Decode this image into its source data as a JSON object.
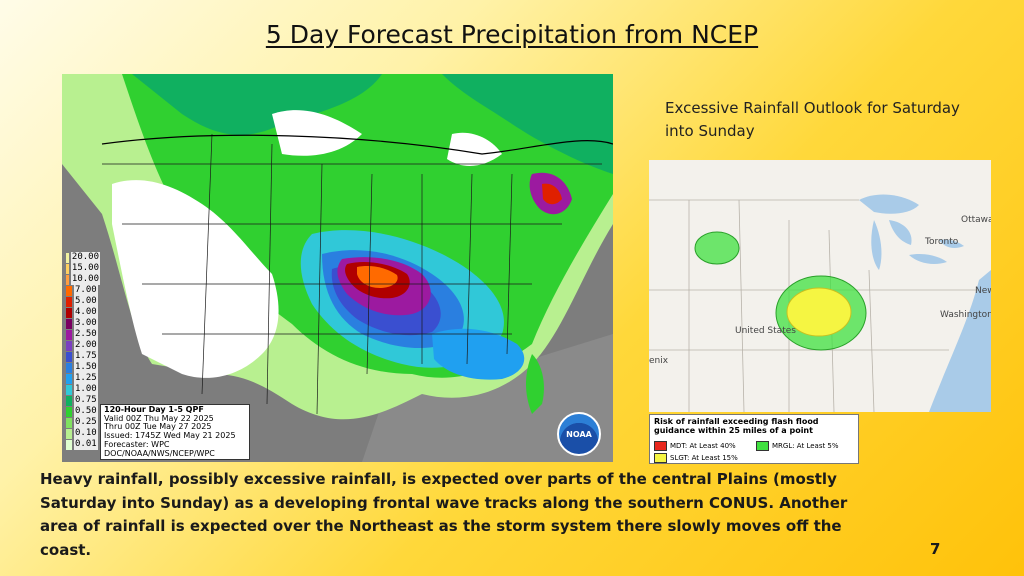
{
  "slide": {
    "title": "5 Day Forecast Precipitation from NCEP",
    "body": "Heavy rainfall, possibly excessive rainfall, is expected over parts of the central Plains (mostly Saturday into Sunday) as a developing frontal wave tracks along the southern CONUS.  Another area of rainfall is expected over the Northeast as the storm system there slowly moves off the coast.",
    "page_number": "7"
  },
  "qpf_map": {
    "legend": [
      {
        "label": "20.00",
        "color": "#f2f2a0"
      },
      {
        "label": "15.00",
        "color": "#ffd060"
      },
      {
        "label": "10.00",
        "color": "#ff9e40"
      },
      {
        "label": "7.00",
        "color": "#ff6a00"
      },
      {
        "label": "5.00",
        "color": "#e02000"
      },
      {
        "label": "4.00",
        "color": "#b00000"
      },
      {
        "label": "3.00",
        "color": "#7a0060"
      },
      {
        "label": "2.50",
        "color": "#9c1aa0"
      },
      {
        "label": "2.00",
        "color": "#7a3fc0"
      },
      {
        "label": "1.75",
        "color": "#3a4fd0"
      },
      {
        "label": "1.50",
        "color": "#2a7fe0"
      },
      {
        "label": "1.25",
        "color": "#20a0f0"
      },
      {
        "label": "1.00",
        "color": "#30c8d8"
      },
      {
        "label": "0.75",
        "color": "#10b060"
      },
      {
        "label": "0.50",
        "color": "#30d030"
      },
      {
        "label": "0.25",
        "color": "#80e060"
      },
      {
        "label": "0.10",
        "color": "#b8f090"
      },
      {
        "label": "0.01",
        "color": "#e0ffd0"
      }
    ],
    "info": {
      "line1": "120-Hour Day 1-5 QPF",
      "line2": "Valid 00Z Thu May 22 2025",
      "line3": "Thru 00Z Tue May 27 2025",
      "line4": "Issued: 1745Z Wed May 21 2025",
      "line5": "Forecaster: WPC",
      "line6": "DOC/NOAA/NWS/NCEP/WPC"
    },
    "logo_text": "NOAA"
  },
  "ero": {
    "title": "Excessive Rainfall Outlook for Saturday into Sunday",
    "labels": {
      "ottawa": "Ottawa",
      "toronto": "Toronto",
      "new": "New",
      "washington": "Washington",
      "united_states": "United States",
      "phoenix": "enix"
    },
    "legend": {
      "heading": "Risk of rainfall exceeding flash flood guidance within 25 miles of a point",
      "mdt": "MDT: At Least 40%",
      "mrgl": "MRGL: At Least 5%",
      "slgt": "SLGT: At Least 15%",
      "colors": {
        "mdt": "#e8281e",
        "mrgl": "#40e040",
        "slgt": "#f5f542"
      }
    }
  }
}
